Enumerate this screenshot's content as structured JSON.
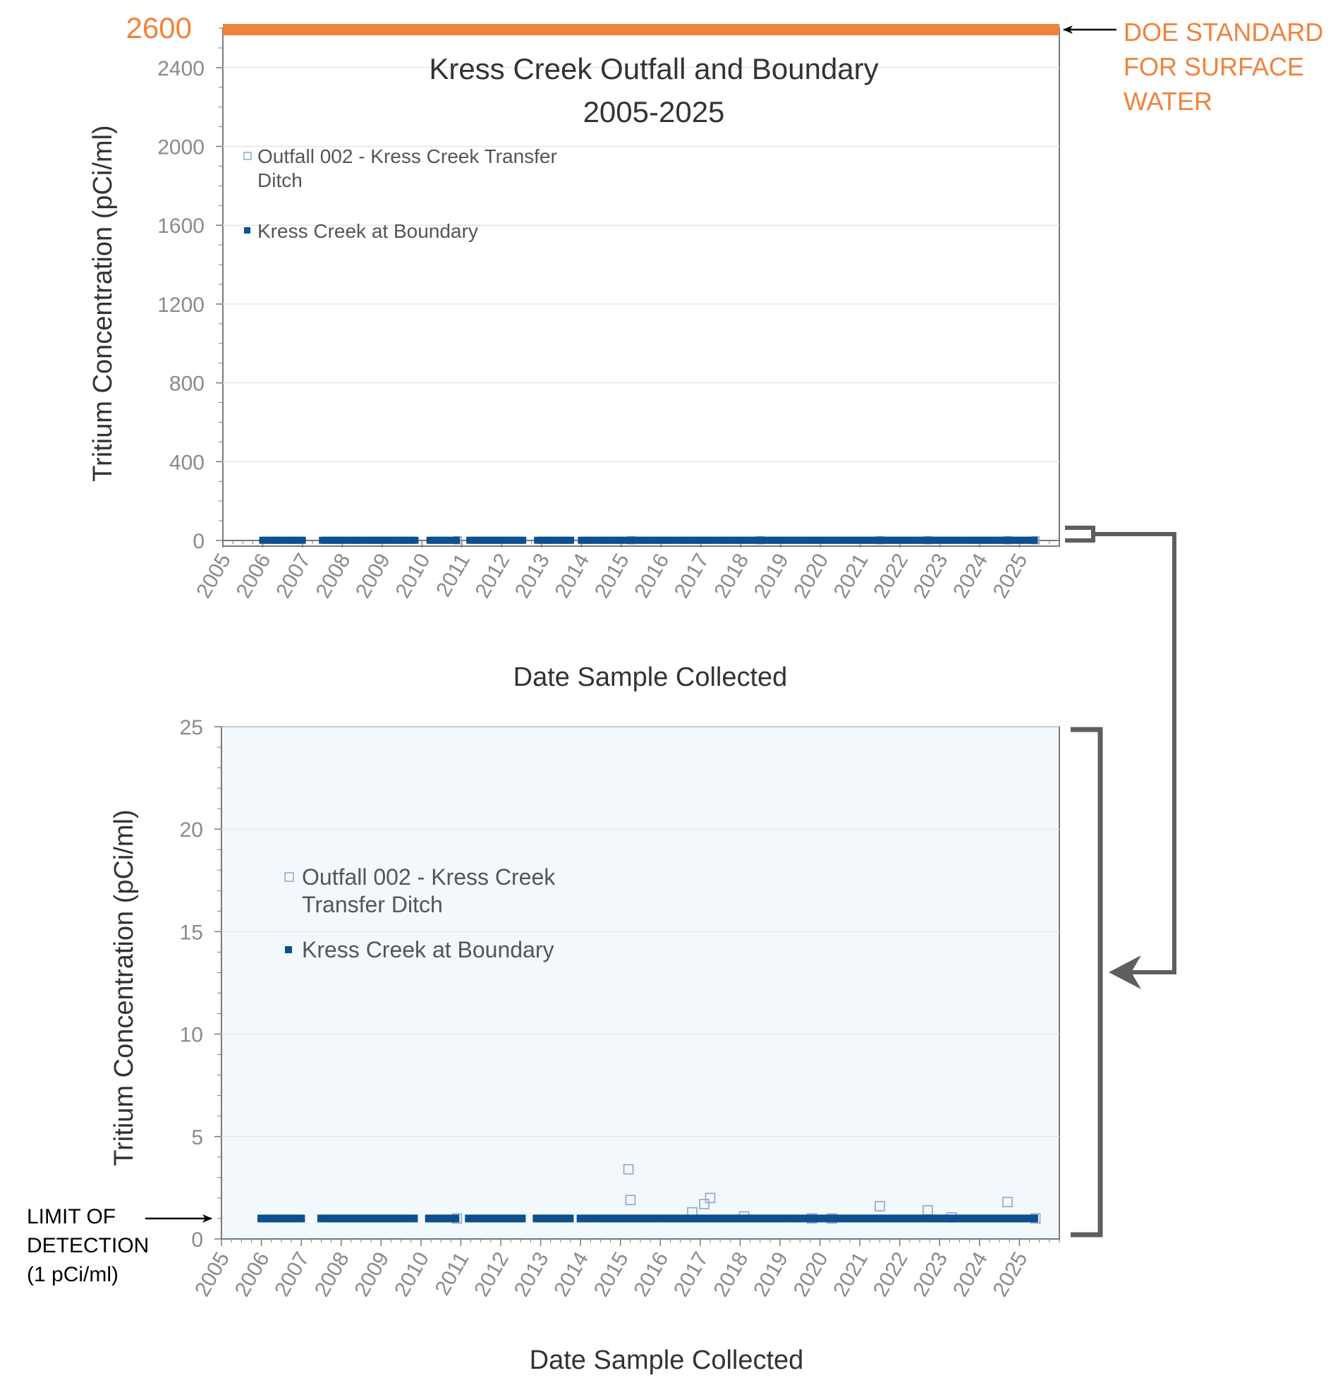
{
  "colors": {
    "orange": "#F0833A",
    "navy": "#0E4F8F",
    "outfall": "#8FA6C8",
    "axis": "#7A7A7A",
    "grid": "#E6E6E6",
    "text": "#333333",
    "tick": "#8A8A8A",
    "panelBg": "#F2F8FC",
    "bracket": "#5E5E5E"
  },
  "annotations": {
    "doe_value": "2600",
    "doe_line1": "DOE STANDARD",
    "doe_line2": "FOR SURFACE",
    "doe_line3": "WATER",
    "lod_line1": "LIMIT OF",
    "lod_line2": "DETECTION",
    "lod_line3": "(1 pCi/ml)"
  },
  "chart_data": [
    {
      "type": "scatter",
      "title_line1": "Kress Creek Outfall and Boundary",
      "title_line2": "2005-2025",
      "xlabel": "Date Sample Collected",
      "ylabel": "Tritium Concentration (pCi/ml)",
      "x_ticks": [
        "2005",
        "2006",
        "2007",
        "2008",
        "2009",
        "2010",
        "2011",
        "2012",
        "2013",
        "2014",
        "2015",
        "2016",
        "2017",
        "2018",
        "2019",
        "2020",
        "2021",
        "2022",
        "2023",
        "2024",
        "2025"
      ],
      "xlim": [
        2005,
        2026
      ],
      "ylim": [
        0,
        2600
      ],
      "y_ticks": [
        0,
        400,
        800,
        1200,
        1600,
        2000,
        2400
      ],
      "legend": {
        "outfall_line1": "Outfall 002 - Kress Creek Transfer",
        "outfall_line2": "Ditch",
        "boundary": "Kress Creek at Boundary"
      },
      "reference_line": {
        "value": 2600,
        "label": "DOE standard for surface water"
      },
      "series": [
        {
          "name": "Outfall 002 - Kress Creek Transfer Ditch",
          "marker": "open-square",
          "x": [
            2010.9,
            2015.25,
            2018.5,
            2021.5,
            2022.7,
            2024.7,
            2025.4
          ],
          "y": [
            1,
            1,
            1,
            1,
            1,
            1,
            1
          ]
        },
        {
          "name": "Kress Creek at Boundary",
          "marker": "filled-square",
          "segments": [
            [
              2006.0,
              2007.0
            ],
            [
              2007.5,
              2009.9
            ],
            [
              2010.2,
              2010.9
            ],
            [
              2011.2,
              2012.6
            ],
            [
              2012.9,
              2013.8
            ],
            [
              2014.0,
              2025.4
            ]
          ],
          "y": 1
        }
      ]
    },
    {
      "type": "scatter",
      "xlabel": "Date Sample Collected",
      "ylabel": "Tritium Concentration (pCi/ml)",
      "x_ticks": [
        "2005",
        "2006",
        "2007",
        "2008",
        "2009",
        "2010",
        "2011",
        "2012",
        "2013",
        "2014",
        "2015",
        "2016",
        "2017",
        "2018",
        "2019",
        "2020",
        "2021",
        "2022",
        "2023",
        "2024",
        "2025"
      ],
      "xlim": [
        2005,
        2026
      ],
      "ylim": [
        0,
        25
      ],
      "y_ticks": [
        0,
        5,
        10,
        15,
        20,
        25
      ],
      "legend": {
        "outfall_line1": "Outfall 002 - Kress Creek",
        "outfall_line2": "Transfer Ditch",
        "boundary": "Kress Creek at Boundary"
      },
      "reference_line": {
        "value": 1,
        "label": "Limit of detection (1 pCi/ml)"
      },
      "series": [
        {
          "name": "Outfall 002 - Kress Creek Transfer Ditch",
          "marker": "open-square",
          "x": [
            2015.2,
            2015.25,
            2016.8,
            2017.1,
            2017.25,
            2018.1,
            2021.5,
            2022.7,
            2023.3,
            2024.7,
            2010.9,
            2019.8,
            2020.3,
            2025.4
          ],
          "y": [
            3.4,
            1.9,
            1.3,
            1.7,
            2.0,
            1.1,
            1.6,
            1.4,
            1.05,
            1.8,
            1,
            1,
            1,
            1
          ]
        },
        {
          "name": "Kress Creek at Boundary",
          "marker": "filled-square",
          "segments": [
            [
              2006.0,
              2007.0
            ],
            [
              2007.5,
              2009.9
            ],
            [
              2010.2,
              2010.9
            ],
            [
              2011.2,
              2012.6
            ],
            [
              2012.9,
              2013.8
            ],
            [
              2014.0,
              2025.4
            ]
          ],
          "y": 1
        }
      ]
    }
  ]
}
